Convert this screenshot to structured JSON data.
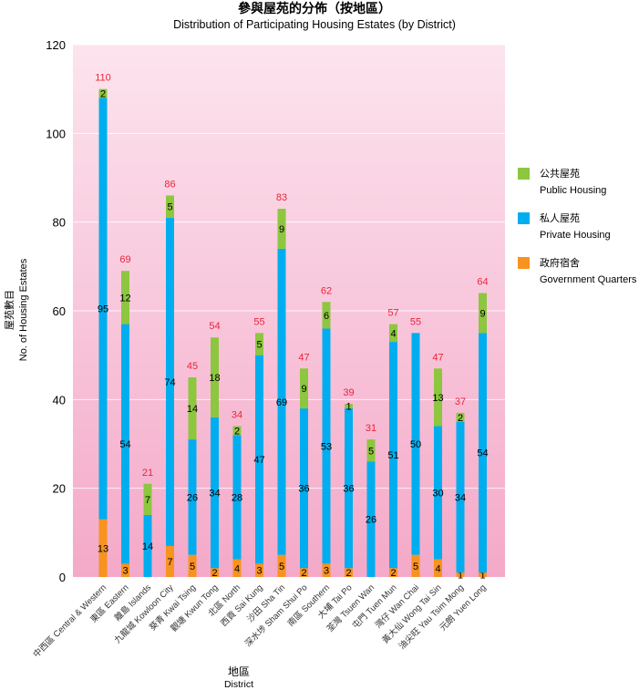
{
  "chart_data": {
    "type": "bar",
    "stacked": true,
    "title": "參與屋苑的分佈（按地區）",
    "subtitle": "Distribution of Participating Housing Estates (by District)",
    "xlabel": "地區",
    "xlabel_en": "District",
    "ylabel": "屋苑數目",
    "ylabel_en": "No. of Housing Estates",
    "ylim": [
      0,
      120
    ],
    "yticks": [
      0,
      20,
      40,
      60,
      80,
      100,
      120
    ],
    "grid": true,
    "legend_position": "right",
    "categories": [
      "中西區  Central & Western",
      "東區  Eastern",
      "離島  Islands",
      "九龍城  Kowloon City",
      "葵青  Kwai Tsing",
      "觀塘  Kwun Tong",
      "北區  North",
      "西貢  Sai Kung",
      "沙田  Sha Tin",
      "深水埗  Sham Shui Po",
      "南區  Southern",
      "大埔  Tai Po",
      "荃灣  Tsuen Wan",
      "屯門  Tuen Mun",
      "灣仔  Wan Chai",
      "黃大仙  Wong Tai Sin",
      "油尖旺  Yau Tsim Mong",
      "元朗  Yuen Long"
    ],
    "series": [
      {
        "name": "政府宿舍",
        "name_en": "Government Quarters",
        "color": "#f7931e",
        "values": [
          13,
          3,
          0,
          7,
          5,
          2,
          4,
          3,
          5,
          2,
          3,
          2,
          0,
          2,
          5,
          4,
          1,
          1
        ]
      },
      {
        "name": "私人屋苑",
        "name_en": "Private Housing",
        "color": "#00aeef",
        "values": [
          95,
          54,
          14,
          74,
          26,
          34,
          28,
          47,
          69,
          36,
          53,
          36,
          26,
          51,
          50,
          30,
          34,
          54
        ]
      },
      {
        "name": "公共屋苑",
        "name_en": "Public Housing",
        "color": "#8dc63f",
        "values": [
          2,
          12,
          7,
          5,
          14,
          18,
          2,
          5,
          9,
          9,
          6,
          1,
          5,
          4,
          0,
          13,
          2,
          9
        ]
      }
    ],
    "totals": [
      110,
      69,
      21,
      86,
      45,
      54,
      34,
      55,
      83,
      47,
      62,
      39,
      31,
      57,
      55,
      47,
      37,
      64
    ],
    "legend_order": [
      "公共屋苑",
      "私人屋苑",
      "政府宿舍"
    ],
    "colors": {
      "total_label": "#e8253b",
      "plot_bg_top": "#fce4ee",
      "plot_bg_bottom": "#f4a9c8",
      "gridline": "#ffffff"
    }
  }
}
